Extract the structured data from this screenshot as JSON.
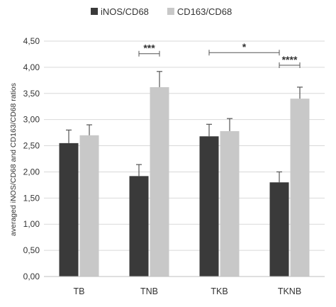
{
  "chart_data": {
    "type": "bar",
    "ylabel": "averaged iNOS/CD68 and CD163/CD68 ratios",
    "xlabel": "",
    "categories": [
      "TB",
      "TNB",
      "TKB",
      "TKNB"
    ],
    "ylim": [
      0,
      4.5
    ],
    "ytick_step": 0.5,
    "ytick_labels": [
      "0,00",
      "0,50",
      "1,00",
      "1,50",
      "2,00",
      "2,50",
      "3,00",
      "3,50",
      "4,00",
      "4,50"
    ],
    "grid": true,
    "legend_position": "top",
    "series": [
      {
        "name": "iNOS/CD68",
        "color": "#3a3a3a",
        "values": [
          2.55,
          1.92,
          2.68,
          1.8
        ],
        "errors": [
          0.25,
          0.22,
          0.23,
          0.2
        ]
      },
      {
        "name": "CD163/CD68",
        "color": "#c8c8c8",
        "values": [
          2.7,
          3.62,
          2.78,
          3.4
        ],
        "errors": [
          0.2,
          0.3,
          0.24,
          0.22
        ]
      }
    ],
    "significance": [
      {
        "label": "***",
        "from": {
          "category": "TNB",
          "series": 0
        },
        "to": {
          "category": "TNB",
          "series": 1
        },
        "level": 4.26
      },
      {
        "label": "*",
        "from": {
          "category": "TKB",
          "series": 0
        },
        "to": {
          "category": "TKNB",
          "series": 0
        },
        "level": 4.28
      },
      {
        "label": "****",
        "from": {
          "category": "TKNB",
          "series": 0
        },
        "to": {
          "category": "TKNB",
          "series": 1
        },
        "level": 4.04
      }
    ]
  }
}
